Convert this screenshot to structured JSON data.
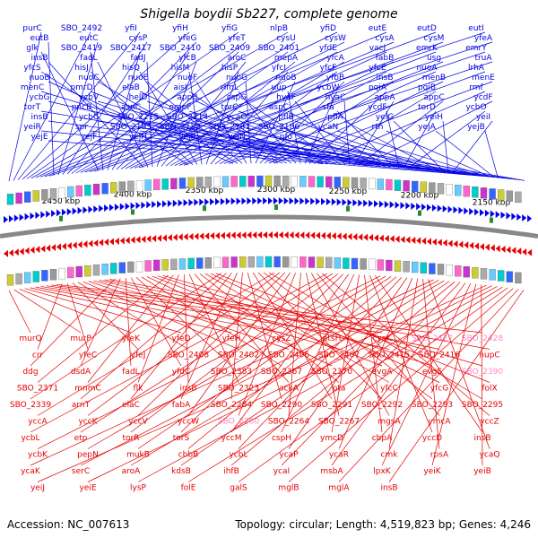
{
  "title": "Shigella boydii Sb227, complete genome",
  "footer": {
    "accession": "Accession: NC_007613",
    "summary": "Topology: circular; Length: 4,519,823 bp; Genes: 4,246"
  },
  "colors": {
    "forward": "#0000e6",
    "reverse": "#e60000",
    "pink": "#ff88cc",
    "backbone": "#888888",
    "tick": "#228b22"
  },
  "kbp_ticks": [
    {
      "label": "2150 kbp",
      "kbp": 2150
    },
    {
      "label": "2200 kbp",
      "kbp": 2200
    },
    {
      "label": "2250 kbp",
      "kbp": 2250
    },
    {
      "label": "2300 kbp",
      "kbp": 2300
    },
    {
      "label": "2350 kbp",
      "kbp": 2350
    },
    {
      "label": "2400 kbp",
      "kbp": 2400
    },
    {
      "label": "2450 kbp",
      "kbp": 2450
    }
  ],
  "forward_genes": [
    "purC",
    "SBO_2492",
    "yfiI",
    "yfiH",
    "yfiG",
    "nlpB",
    "yfiD",
    "eutE",
    "eutD",
    "eutI",
    "eutB",
    "eutC",
    "cysP",
    "yfeG",
    "yfeT",
    "cysU",
    "cysW",
    "cysA",
    "cysM",
    "yfeA",
    "glk",
    "SBO_2419",
    "SBO_2417",
    "SBO_2410",
    "SBO_2409",
    "SBO_2401",
    "yfdE",
    "vacJ",
    "emrK",
    "emrY",
    "insB",
    "fadL",
    "fadJ",
    "yfcB",
    "aroC",
    "mepA",
    "yfcA",
    "fabB",
    "usg",
    "truA",
    "yfcS",
    "hisJ",
    "hisQ",
    "hisM",
    "hisP",
    "yfcI",
    "yfcF",
    "yfcE",
    "nuoA",
    "lrhA",
    "nuoB",
    "nuoC",
    "nuoE",
    "nuoF",
    "nuoG",
    "nuoB",
    "yfbB",
    "insB",
    "menB",
    "menE",
    "menC",
    "pmrD",
    "elaB",
    "aisI",
    "rlmL",
    "uup",
    "ycbW",
    "pqiA",
    "pqiB",
    "rmf",
    "ycbG",
    "ycbV",
    "helD",
    "appB",
    "cspG",
    "hyaF",
    "hyaC",
    "appA",
    "appC",
    "ycdF",
    "torT",
    "pncB",
    "asnC",
    "ompF",
    "torC",
    "aspC",
    "sfa",
    "ycdF",
    "torD",
    "ycbO",
    "insB",
    "ycbC",
    "SBO_2215",
    "SBO_2214",
    "ycaO",
    "pflB",
    "pflA",
    "yeiG",
    "yeiH",
    "yeiI",
    "yeiR",
    "spr",
    "SBO_2195",
    "SBO_2182",
    "SBO_2181",
    "SBO_2186",
    "ycaN",
    "rtn",
    "yejA",
    "yejB",
    "yejE",
    "yejF",
    "yejH",
    "yejR",
    "yejN",
    "nfo"
  ],
  "reverse_genes": [
    "murQ",
    "murP",
    "yfeK",
    "yfeD",
    "yfeH",
    "cysZ",
    "ptsH",
    "cysK",
    "SBO_2427",
    "SBO_2428",
    "crr",
    "yfeC",
    "yfeJ",
    "SBO_2408",
    "SBO_2402",
    "SBO_2406",
    "SBO_2407",
    "SBO_2415",
    "SBO_2416",
    "nupC",
    "ddg",
    "dsdA",
    "fadL",
    "yfdC",
    "SBO_2383",
    "SBO_2367",
    "SBO_2370",
    "evgA",
    "evgS",
    "SBO_2390",
    "SBO_2371",
    "mnmC",
    "flk",
    "insB",
    "SBO_2323",
    "ackA",
    "pta",
    "yfcC",
    "yfcG",
    "folX",
    "SBO_2339",
    "arnT",
    "elaC",
    "fabA",
    "SBO_2284",
    "SBO_2290",
    "SBO_2291",
    "SBO_2292",
    "SBO_2293",
    "SBO_2295",
    "yccA",
    "yccK",
    "yccV",
    "yccW",
    "SBO_2260",
    "SBO_2264",
    "SBO_2267",
    "mgsA",
    "ymcA",
    "yccZ",
    "ycbL",
    "etp",
    "torR",
    "torS",
    "yccM",
    "cspH",
    "ymcD",
    "cbpA",
    "yccD",
    "insB",
    "ycbK",
    "pepN",
    "mukB",
    "cbbB",
    "ycbL",
    "ycaP",
    "ycaR",
    "cmk",
    "rpsA",
    "ycaQ",
    "ycaK",
    "serC",
    "aroA",
    "kdsB",
    "ihfB",
    "ycaI",
    "msbA",
    "lpxK",
    "yeiK",
    "yeiB",
    "yeiJ",
    "yeiE",
    "lysP",
    "folE",
    "galS",
    "mglB",
    "mglA",
    "insB"
  ]
}
